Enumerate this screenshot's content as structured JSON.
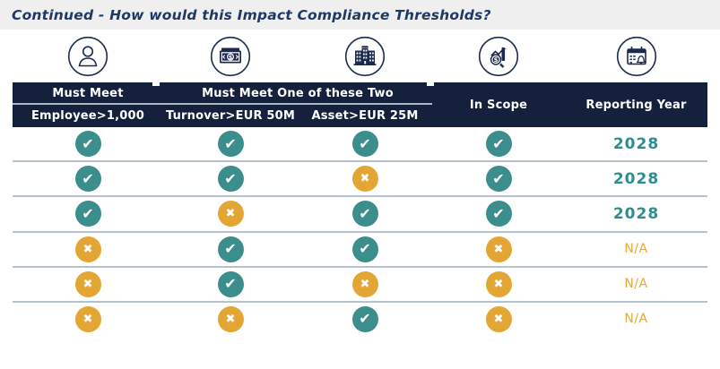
{
  "title": "Continued - How would this Impact Compliance Thresholds?",
  "colors": {
    "header_bg": "#15203c",
    "title_text": "#1f3864",
    "check_circle": "#3b8e8c",
    "cross_circle": "#e3a634",
    "year_text": "#2f8e8d",
    "na_text": "#e4a93c",
    "title_band_bg": "#efefef",
    "row_separator": "#b5c2cb"
  },
  "icons_row": [
    {
      "name": "employee-person-icon"
    },
    {
      "name": "turnover-banknote-icon"
    },
    {
      "name": "asset-building-icon"
    },
    {
      "name": "in-scope-analysis-icon"
    },
    {
      "name": "reporting-calendar-bell-icon"
    }
  ],
  "marks": {
    "check_glyph": "✔",
    "cross_glyph": "✖"
  },
  "table": {
    "header": {
      "must_meet": "Must Meet",
      "must_meet_one": "Must Meet One of these Two",
      "employee": "Employee>1,000",
      "turnover": "Turnover>EUR 50M",
      "asset": "Asset>EUR 25M",
      "in_scope": "In Scope",
      "reporting_year": "Reporting Year"
    },
    "rows": [
      {
        "employee": "yes",
        "turnover": "yes",
        "asset": "yes",
        "in_scope": "yes",
        "reporting_year": "2028"
      },
      {
        "employee": "yes",
        "turnover": "yes",
        "asset": "no",
        "in_scope": "yes",
        "reporting_year": "2028"
      },
      {
        "employee": "yes",
        "turnover": "no",
        "asset": "yes",
        "in_scope": "yes",
        "reporting_year": "2028"
      },
      {
        "employee": "no",
        "turnover": "yes",
        "asset": "yes",
        "in_scope": "no",
        "reporting_year": "N/A"
      },
      {
        "employee": "no",
        "turnover": "yes",
        "asset": "no",
        "in_scope": "no",
        "reporting_year": "N/A"
      },
      {
        "employee": "no",
        "turnover": "no",
        "asset": "yes",
        "in_scope": "no",
        "reporting_year": "N/A"
      }
    ]
  }
}
